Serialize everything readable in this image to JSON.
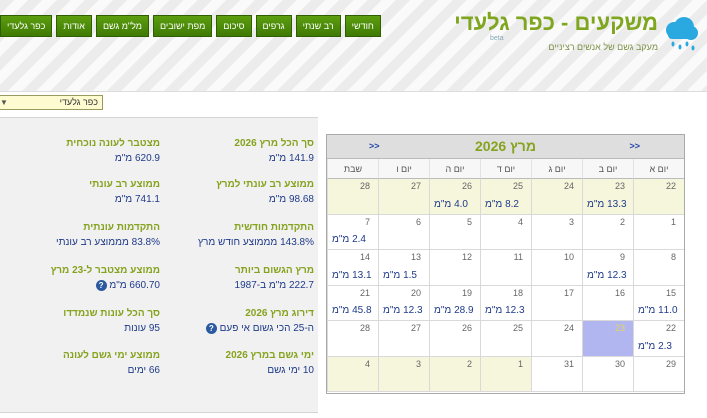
{
  "site": {
    "title": "משקעים - כפר גלעדי",
    "subtitle": "מעקב גשם של אנשים רציניים",
    "beta": "beta"
  },
  "nav": [
    "חודשי",
    "רב שנתי",
    "גרפים",
    "סיכום",
    "מפת ישובים",
    "מל\"מ גשם",
    "אודות",
    "כפר גלעדי"
  ],
  "town_select": {
    "value": "כפר גלעדי"
  },
  "stats": {
    "total_march": {
      "label": "סך הכל מרץ 2026",
      "value": "141.9 מ\"מ"
    },
    "season_acc": {
      "label": "מצטבר לעונה נוכחית",
      "value": "620.9 מ\"מ"
    },
    "multiyear_march": {
      "label": "ממוצע רב עונתי למרץ",
      "value": "98.68 מ\"מ"
    },
    "multiyear_season": {
      "label": "ממוצע רב עונתי",
      "value": "741.1 מ\"מ"
    },
    "monthly_progress": {
      "label": "התקדמות חודשית",
      "value": "143.8% מממוצע חודש מרץ"
    },
    "season_progress": {
      "label": "התקדמות עונתית",
      "value": "83.8% מממוצע רב עונתי"
    },
    "rainiest_march": {
      "label": "מרץ הגשום ביותר",
      "value": "222.7 מ\"מ ב-1987"
    },
    "avg_to_23": {
      "label": "ממוצע מצטבר ל-23 מרץ",
      "value": "660.70 מ\"מ"
    },
    "ranking": {
      "label": "דירוג מרץ 2026",
      "value": "ה-25 הכי גשום אי פעם"
    },
    "seasons_count": {
      "label": "סך הכל עונות שנמדדו",
      "value": "95 עונות"
    },
    "rain_days": {
      "label": "ימי גשם במרץ 2026",
      "value": "10 ימי גשם"
    },
    "avg_rain_days": {
      "label": "ממוצע ימי גשם לעונה",
      "value": "66 ימים"
    }
  },
  "calendar": {
    "title": "מרץ 2026",
    "prev": "<<",
    "next": "<<",
    "weekdays": [
      "יום א",
      "יום ב",
      "יום ג",
      "יום ד",
      "יום ה",
      "יום ו",
      "שבת"
    ],
    "weeks": [
      [
        {
          "d": "22",
          "r": "",
          "o": true
        },
        {
          "d": "23",
          "r": "13.3 מ\"מ",
          "o": true
        },
        {
          "d": "24",
          "r": "",
          "o": true
        },
        {
          "d": "25",
          "r": "8.2 מ\"מ",
          "o": true
        },
        {
          "d": "26",
          "r": "4.0 מ\"מ",
          "o": true
        },
        {
          "d": "27",
          "r": "",
          "o": true
        },
        {
          "d": "28",
          "r": "",
          "o": true
        }
      ],
      [
        {
          "d": "1",
          "r": ""
        },
        {
          "d": "2",
          "r": ""
        },
        {
          "d": "3",
          "r": ""
        },
        {
          "d": "4",
          "r": ""
        },
        {
          "d": "5",
          "r": ""
        },
        {
          "d": "6",
          "r": ""
        },
        {
          "d": "7",
          "r": "2.4 מ\"מ"
        }
      ],
      [
        {
          "d": "8",
          "r": ""
        },
        {
          "d": "9",
          "r": "12.3 מ\"מ"
        },
        {
          "d": "10",
          "r": ""
        },
        {
          "d": "11",
          "r": ""
        },
        {
          "d": "12",
          "r": ""
        },
        {
          "d": "13",
          "r": "1.5 מ\"מ"
        },
        {
          "d": "14",
          "r": "13.1 מ\"מ"
        }
      ],
      [
        {
          "d": "15",
          "r": "11.0 מ\"מ"
        },
        {
          "d": "16",
          "r": ""
        },
        {
          "d": "17",
          "r": ""
        },
        {
          "d": "18",
          "r": "12.3 מ\"מ"
        },
        {
          "d": "19",
          "r": "28.9 מ\"מ"
        },
        {
          "d": "20",
          "r": "12.3 מ\"מ"
        },
        {
          "d": "21",
          "r": "45.8 מ\"מ"
        }
      ],
      [
        {
          "d": "22",
          "r": "2.3 מ\"מ"
        },
        {
          "d": "23",
          "r": "",
          "t": true
        },
        {
          "d": "24",
          "r": ""
        },
        {
          "d": "25",
          "r": ""
        },
        {
          "d": "26",
          "r": ""
        },
        {
          "d": "27",
          "r": ""
        },
        {
          "d": "28",
          "r": ""
        }
      ],
      [
        {
          "d": "29",
          "r": ""
        },
        {
          "d": "30",
          "r": ""
        },
        {
          "d": "31",
          "r": ""
        },
        {
          "d": "1",
          "r": "",
          "o": true
        },
        {
          "d": "2",
          "r": "",
          "o": true
        },
        {
          "d": "3",
          "r": "",
          "o": true
        },
        {
          "d": "4",
          "r": "",
          "o": true
        }
      ]
    ]
  }
}
